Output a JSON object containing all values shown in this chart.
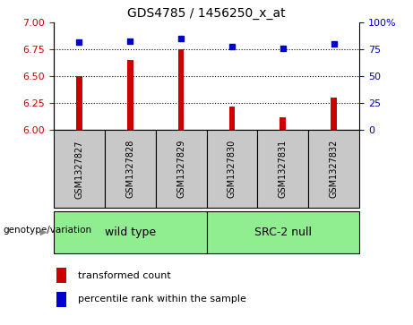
{
  "title": "GDS4785 / 1456250_x_at",
  "samples": [
    "GSM1327827",
    "GSM1327828",
    "GSM1327829",
    "GSM1327830",
    "GSM1327831",
    "GSM1327832"
  ],
  "red_values": [
    6.5,
    6.65,
    6.75,
    6.22,
    6.12,
    6.3
  ],
  "blue_values": [
    82,
    83,
    85,
    78,
    76,
    80
  ],
  "ylim_left": [
    6.0,
    7.0
  ],
  "ylim_right": [
    0,
    100
  ],
  "yticks_left": [
    6.0,
    6.25,
    6.5,
    6.75,
    7.0
  ],
  "yticks_right": [
    0,
    25,
    50,
    75,
    100
  ],
  "hlines": [
    6.25,
    6.5,
    6.75
  ],
  "group_wt_label": "wild type",
  "group_src_label": "SRC-2 null",
  "group_color": "#90EE90",
  "group_label": "genotype/variation",
  "bar_color": "#CC0000",
  "dot_color": "#0000CC",
  "bar_width": 0.12,
  "background_color": "#ffffff",
  "tick_label_color_left": "#CC0000",
  "tick_label_color_right": "#0000CC",
  "legend_red": "transformed count",
  "legend_blue": "percentile rank within the sample",
  "sample_box_color": "#C8C8C8"
}
